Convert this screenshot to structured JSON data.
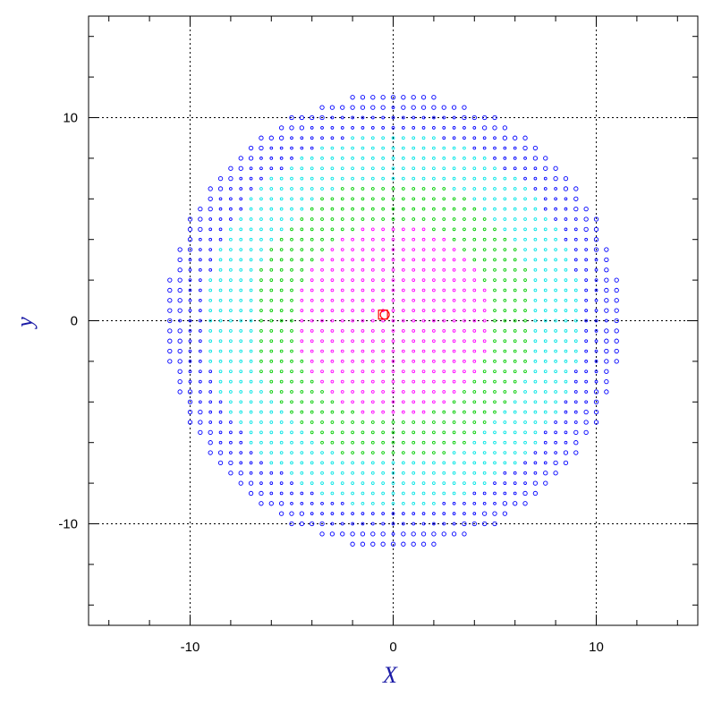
{
  "chart_data": {
    "type": "scatter",
    "title": "",
    "xlabel": "X",
    "ylabel": "y",
    "xlim": [
      -15,
      15
    ],
    "ylim": [
      -15,
      15
    ],
    "x_ticks": [
      -10,
      0,
      10
    ],
    "y_ticks": [
      -10,
      0,
      10
    ],
    "x_tick_labels": [
      "-10",
      "0",
      "10"
    ],
    "y_tick_labels": [
      "-10",
      "0",
      "10"
    ],
    "minor_tick_step": 2,
    "grid": true,
    "grid_lines_at": [
      -10,
      0,
      10
    ],
    "grid_style": "dotted",
    "legend": "none",
    "label_color": "#1a1aa6",
    "series": [
      {
        "color": "#ff00ff",
        "r_min": 0,
        "r_max": 4.9
      },
      {
        "color": "#00cc00",
        "r_min": 4.9,
        "r_max": 7.0
      },
      {
        "color": "#00e5e5",
        "r_min": 7.0,
        "r_max": 9.3
      },
      {
        "color": "#0000ff",
        "r_min": 9.3,
        "r_max": 11.2
      }
    ],
    "grid_points": {
      "spacing": 0.5,
      "center": [
        0,
        0
      ],
      "max_radius": 11.2
    },
    "highlighted_points": [
      {
        "x": -0.5,
        "y": 0.3,
        "color": "#ff0000",
        "marker": "square-circle"
      }
    ]
  }
}
